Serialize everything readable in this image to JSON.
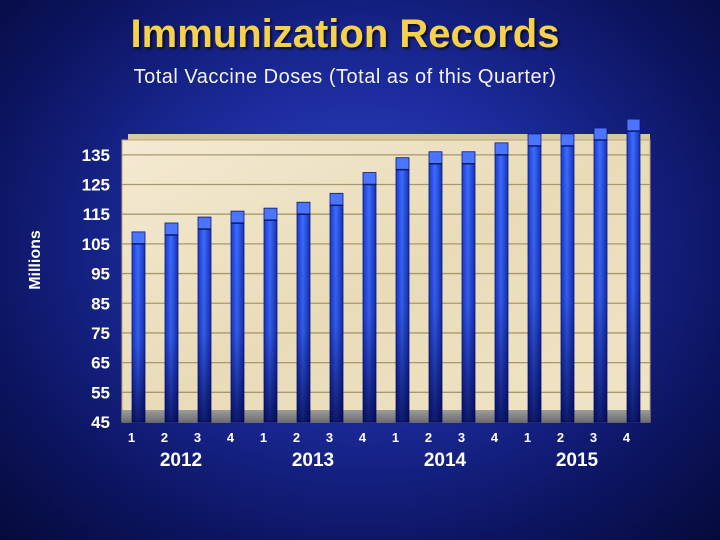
{
  "page": {
    "title": "Immunization Records",
    "subtitle": "Total Vaccine Doses (Total as of this Quarter)"
  },
  "chart_data": {
    "type": "bar",
    "title": "Immunization Records",
    "subtitle": "Total Vaccine Doses (Total as of this Quarter)",
    "xlabel": "",
    "ylabel": "Millions",
    "ylim": [
      45,
      140
    ],
    "yticks": [
      45,
      55,
      65,
      75,
      85,
      95,
      105,
      115,
      125,
      135
    ],
    "categories": [
      "1",
      "2",
      "3",
      "4",
      "1",
      "2",
      "3",
      "4",
      "1",
      "2",
      "3",
      "4",
      "1",
      "2",
      "3",
      "4"
    ],
    "groups": [
      {
        "label": "2012",
        "span": [
          0,
          3
        ]
      },
      {
        "label": "2013",
        "span": [
          4,
          7
        ]
      },
      {
        "label": "2014",
        "span": [
          8,
          11
        ]
      },
      {
        "label": "2015",
        "span": [
          12,
          15
        ]
      }
    ],
    "values": [
      105,
      108,
      110,
      112,
      113,
      115,
      118,
      125,
      130,
      132,
      132,
      135,
      138,
      138,
      140,
      143
    ],
    "grid": true,
    "colors": {
      "bar_top": "#5a86ff",
      "bar_bottom": "#0a1f9c",
      "plot_bg": "#efe3c6",
      "floor": "#8a8a8a"
    }
  }
}
